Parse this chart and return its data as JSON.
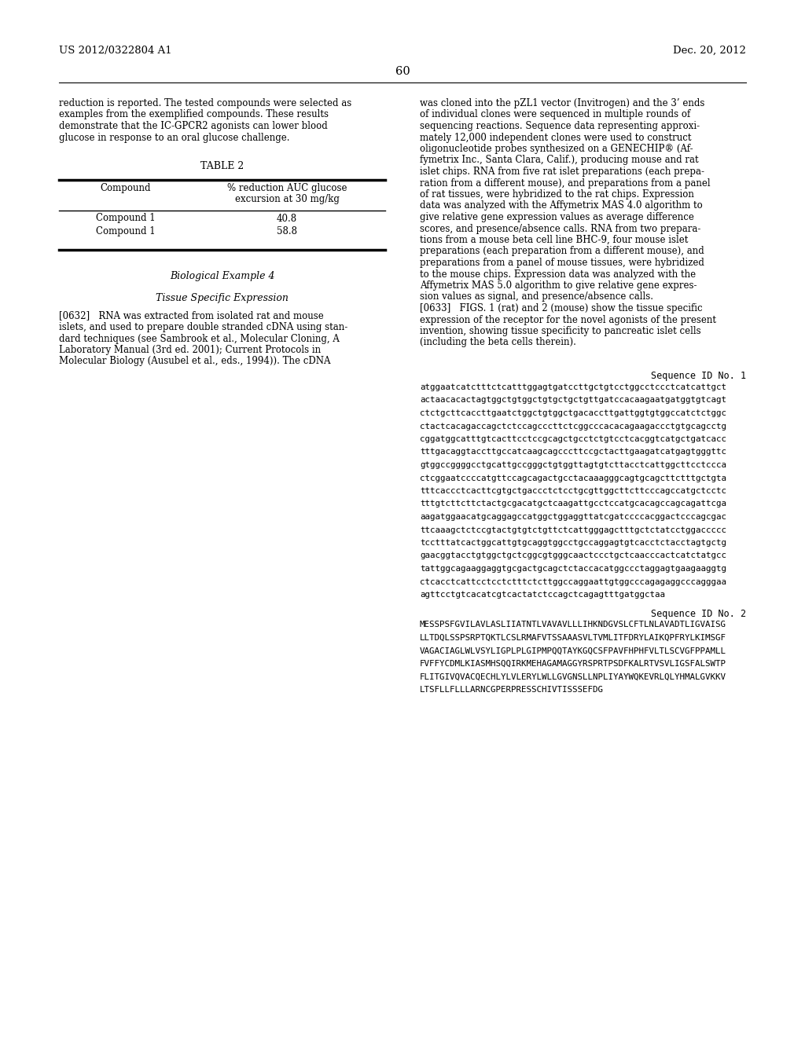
{
  "background_color": "#ffffff",
  "header_left": "US 2012/0322804 A1",
  "header_right": "Dec. 20, 2012",
  "page_number": "60",
  "body_text_left": [
    "reduction is reported. The tested compounds were selected as",
    "examples from the exemplified compounds. These results",
    "demonstrate that the IC-GPCR2 agonists can lower blood",
    "glucose in response to an oral glucose challenge."
  ],
  "table_title": "TABLE 2",
  "table_col1_header": "Compound",
  "table_col2_header_line1": "% reduction AUC glucose",
  "table_col2_header_line2": "excursion at 30 mg/kg",
  "table_rows": [
    [
      "Compound 1",
      "40.8"
    ],
    [
      "Compound 1",
      "58.8"
    ]
  ],
  "bio_example_title": "Biological Example 4",
  "tissue_title": "Tissue Specific Expression",
  "para_0632_lines": [
    "[0632]   RNA was extracted from isolated rat and mouse",
    "islets, and used to prepare double stranded cDNA using stan-",
    "dard techniques (see Sambrook et al., Molecular Cloning, A",
    "Laboratory Manual (3rd ed. 2001); Current Protocols in",
    "Molecular Biology (Ausubel et al., eds., 1994)). The cDNA"
  ],
  "body_text_right": [
    "was cloned into the pZL1 vector (Invitrogen) and the 3’ ends",
    "of individual clones were sequenced in multiple rounds of",
    "sequencing reactions. Sequence data representing approxi-",
    "mately 12,000 independent clones were used to construct",
    "oligonucleotide probes synthesized on a GENECHIP® (Af-",
    "fymetrix Inc., Santa Clara, Calif.), producing mouse and rat",
    "islet chips. RNA from five rat islet preparations (each prepa-",
    "ration from a different mouse), and preparations from a panel",
    "of rat tissues, were hybridized to the rat chips. Expression",
    "data was analyzed with the Affymetrix MAS 4.0 algorithm to",
    "give relative gene expression values as average difference",
    "scores, and presence/absence calls. RNA from two prepara-",
    "tions from a mouse beta cell line BHC-9, four mouse islet",
    "preparations (each preparation from a different mouse), and",
    "preparations from a panel of mouse tissues, were hybridized",
    "to the mouse chips. Expression data was analyzed with the",
    "Affymetrix MAS 5.0 algorithm to give relative gene expres-",
    "sion values as signal, and presence/absence calls.",
    "[0633]   FIGS. 1 (rat) and 2 (mouse) show the tissue specific",
    "expression of the receptor for the novel agonists of the present",
    "invention, showing tissue specificity to pancreatic islet cells",
    "(including the beta cells therein)."
  ],
  "seq_id_1_label": "Sequence ID No. 1",
  "seq_id_1_lines": [
    "atggaatcatctttctcatttggagtgatccttgctgtcctggcctccctcatcattgct",
    "actaacacactagtggctgtggctgtgctgctgttgatccacaagaatgatggtgtcagt",
    "ctctgcttcaccttgaatctggctgtggctgacaccttgattggtgtggccatctctggc",
    "ctactcacagaccagctctccagcccttctcggcccacacagaagaccctgtgcagcctg",
    "cggatggcatttgtcacttcctccgcagctgcctctgtcctcacggtcatgctgatcacc",
    "tttgacaggtaccttgccatcaagcagcccttccgctacttgaagatcatgagtgggttc",
    "gtggccggggcctgcattgccgggctgtggttagtgtcttacctcattggcttcctccca",
    "ctcggaatccccatgttccagcagactgcctacaaagggcagtgcagcttctttgctgta",
    "tttcaccctcacttcgtgctgaccctctcctgcgttggcttcttcccagccatgctcctc",
    "tttgtcttcttctactgcgacatgctcaagattgcctccatgcacagccagcagattcga",
    "aagatggaacatgcaggagccatggctggaggttatcgatccccacggactcccagcgac",
    "ttcaaagctctccgtactgtgtctgttctcattgggagctttgctctatcctggaccccc",
    "tcctttatcactggcattgtgcaggtggcctgccaggagtgtcacctctacctagtgctg",
    "gaacggtacctgtggctgctcggcgtgggcaactccctgctcaacccactcatctatgcc",
    "tattggcagaaggaggtgcgactgcagctctaccacatggccctaggagtgaagaaggtg",
    "ctcacctcattcctcctctttctcttggccaggaattgtggcccagagaggcccagggaa",
    "agttcctgtcacatcgtcactatctccagctcagagtttgatggctaa"
  ],
  "seq_id_2_label": "Sequence ID No. 2",
  "seq_id_2_lines": [
    "MESSPSFGVILAVLASLIIATNTLVAVAVLLLIHKNDGVSLCFTLNLAVADTLIGVAISG",
    "LLTDQLSSPSRPTQKTLCSLRMAFVTSSAAASVLTVMLITFDRYLAIKQPFRYLKIMSGF",
    "VAGACIAGLWLVSYLIGPLPLGIPMPQQTAYKGQCSFPAVFHPHFVLTLSCVGFPPAMLL",
    "FVFFYCDMLKIASMHSQQIRKMEHAGAMAGGYRSPRTPSDFKALRTVSVLIGSFALSWTP",
    "FLITGIVQVACQECHLYLVLERYLWLLGVGNSLLNPLIYAYWQKEVRLQLYHMALGVKKV",
    "LTSFLLFLLLARNCGPERPRESSCHIVTISSSEFDG"
  ]
}
